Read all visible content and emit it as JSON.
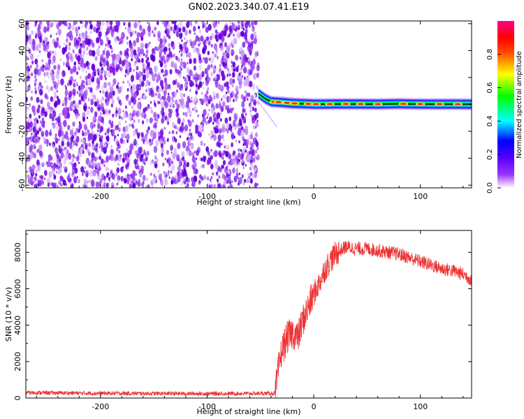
{
  "title": "GN02.2023.340.07.41.E19",
  "colors": {
    "noise_purple": "#7a00e6",
    "noise_light": "#d8b8f5",
    "snr_line": "#ee3333",
    "axis": "#000000"
  },
  "chart_data": [
    {
      "type": "heatmap",
      "xlabel": "Height of straight line (km)",
      "ylabel": "Frequency (Hz)",
      "xlim": [
        -270,
        148
      ],
      "ylim": [
        -62,
        62
      ],
      "xticks": [
        -200,
        -100,
        0,
        100
      ],
      "yticks": [
        -60,
        -40,
        -20,
        0,
        20,
        40,
        60
      ],
      "colorbar": {
        "label": "Normalized spectral amplitude",
        "range": [
          0,
          1
        ],
        "ticks": [
          0.0,
          0.2,
          0.4,
          0.6,
          0.8
        ],
        "colormap": [
          "#ffffff",
          "#8a00ff",
          "#0000ff",
          "#00ffff",
          "#00ff00",
          "#ffff00",
          "#ff0000",
          "#ff007f"
        ]
      },
      "noise_region_x": [
        -270,
        -52
      ],
      "signal_track": {
        "x": [
          -52,
          -45,
          -40,
          -30,
          -20,
          -10,
          0,
          10,
          20,
          40,
          60,
          80,
          90,
          110,
          130,
          148
        ],
        "frequency": [
          8,
          4,
          2,
          1.5,
          0.8,
          0.5,
          0.2,
          0.2,
          0.3,
          0.3,
          0.2,
          0.5,
          0.3,
          0.2,
          0.2,
          0.1
        ],
        "hot_spots_x": [
          -37,
          -33,
          -25,
          -18,
          -5,
          2,
          15,
          30,
          44,
          60,
          84,
          100,
          118,
          135
        ]
      }
    },
    {
      "type": "line",
      "xlabel": "Height of straight line (km)",
      "ylabel": "SNR (10 * v/v)",
      "xlim": [
        -270,
        148
      ],
      "ylim": [
        0,
        9200
      ],
      "xticks": [
        -200,
        -100,
        0,
        100
      ],
      "yticks": [
        0,
        2000,
        4000,
        6000,
        8000
      ],
      "series": [
        {
          "x": [
            -270,
            -240,
            -200,
            -150,
            -100,
            -60,
            -36,
            -33,
            -30,
            -25,
            -20,
            -15,
            -10,
            -5,
            0,
            5,
            10,
            15,
            20,
            25,
            30,
            40,
            50,
            60,
            70,
            80,
            90,
            100,
            110,
            120,
            130,
            140,
            148
          ],
          "values": [
            300,
            280,
            260,
            250,
            240,
            250,
            260,
            1600,
            2600,
            3300,
            3600,
            3300,
            4300,
            5000,
            5700,
            6300,
            7000,
            7500,
            7900,
            8100,
            8300,
            8200,
            8200,
            8100,
            8000,
            7900,
            7700,
            7500,
            7300,
            7100,
            7000,
            6800,
            6500
          ]
        }
      ]
    }
  ]
}
